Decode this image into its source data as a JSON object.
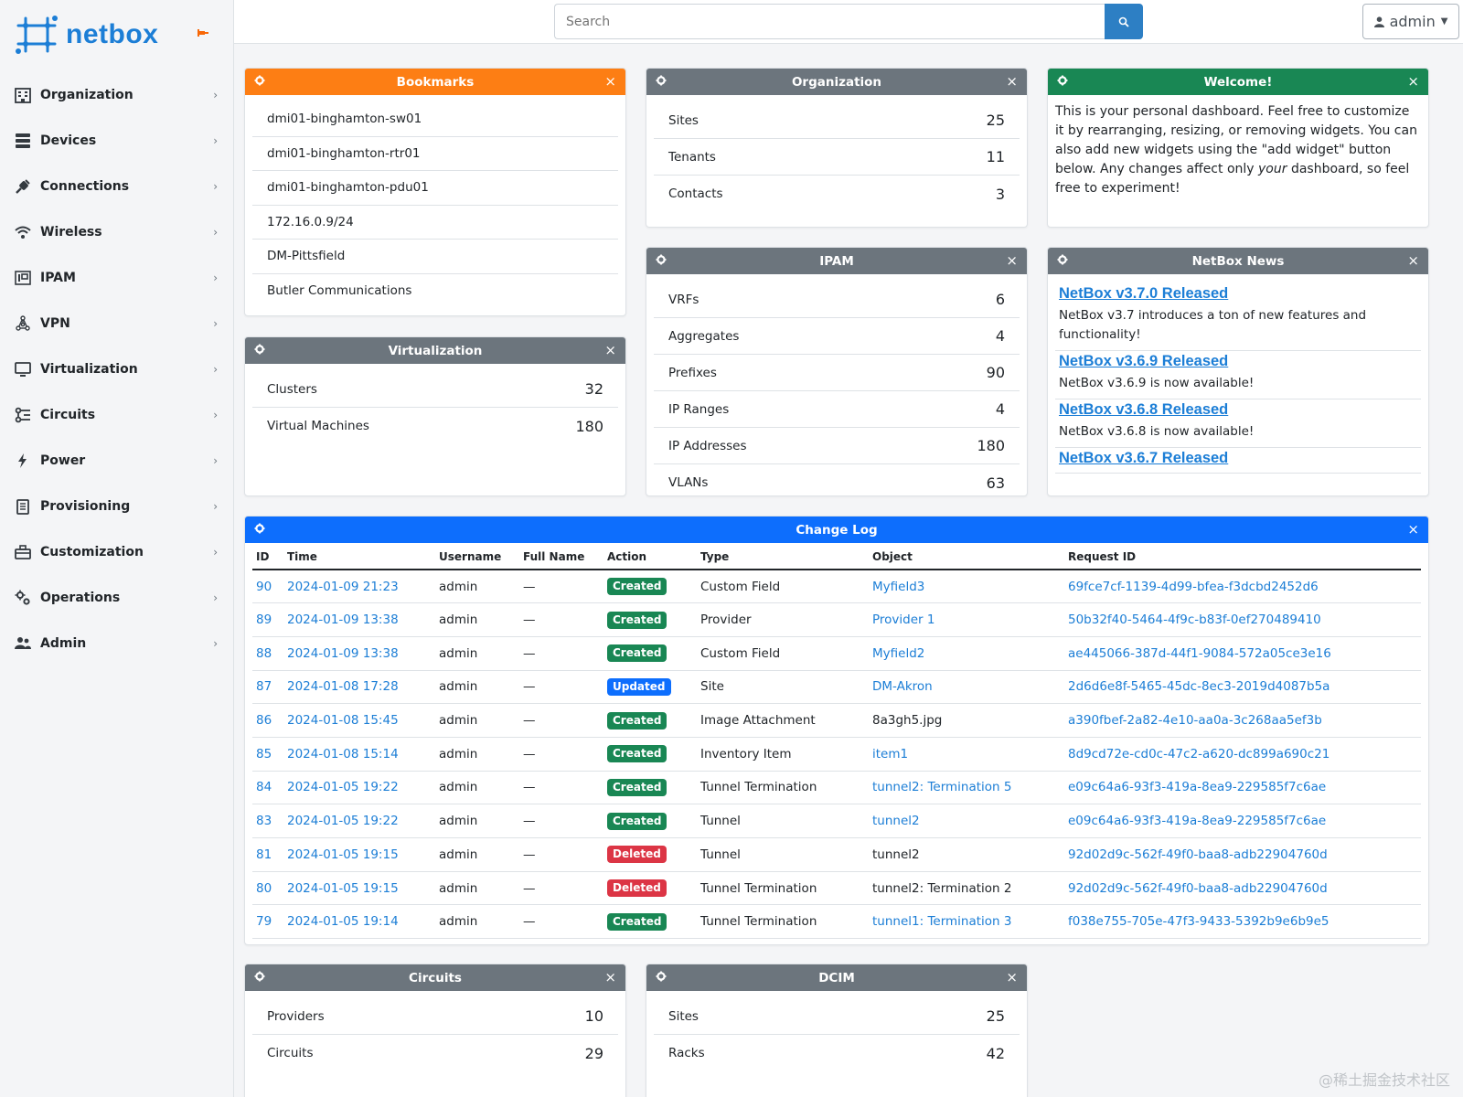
{
  "brand": {
    "name": "netbox"
  },
  "sidebar": {
    "items": [
      {
        "label": "Organization",
        "icon": "building-icon"
      },
      {
        "label": "Devices",
        "icon": "server-icon"
      },
      {
        "label": "Connections",
        "icon": "plug-icon"
      },
      {
        "label": "Wireless",
        "icon": "wifi-icon"
      },
      {
        "label": "IPAM",
        "icon": "ip-icon"
      },
      {
        "label": "VPN",
        "icon": "graph-icon"
      },
      {
        "label": "Virtualization",
        "icon": "monitor-icon"
      },
      {
        "label": "Circuits",
        "icon": "circuit-icon"
      },
      {
        "label": "Power",
        "icon": "lightning-icon"
      },
      {
        "label": "Provisioning",
        "icon": "file-icon"
      },
      {
        "label": "Customization",
        "icon": "toolbox-icon"
      },
      {
        "label": "Operations",
        "icon": "cogs-icon"
      },
      {
        "label": "Admin",
        "icon": "users-icon"
      }
    ],
    "chevron": "›"
  },
  "header": {
    "search_placeholder": "Search",
    "user_label": "admin"
  },
  "colors": {
    "orange": "#fd7e14",
    "gray": "#6c757d",
    "green": "#198754",
    "blue": "#0d6efd",
    "link": "#1c7ed6",
    "danger": "#dc3545"
  },
  "widgets": {
    "close_glyph": "×",
    "bookmarks": {
      "title": "Bookmarks",
      "items": [
        "dmi01-binghamton-sw01",
        "dmi01-binghamton-rtr01",
        "dmi01-binghamton-pdu01",
        "172.16.0.9/24",
        "DM-Pittsfield",
        "Butler Communications"
      ]
    },
    "organization": {
      "title": "Organization",
      "rows": [
        {
          "label": "Sites",
          "value": "25"
        },
        {
          "label": "Tenants",
          "value": "11"
        },
        {
          "label": "Contacts",
          "value": "3"
        }
      ]
    },
    "welcome": {
      "title": "Welcome!",
      "text_before": "This is your personal dashboard. Feel free to customize it by rearranging, resizing, or removing widgets. You can also add new widgets using the \"add widget\" button below. Any changes affect only ",
      "text_em": "your",
      "text_after": " dashboard, so feel free to experiment!"
    },
    "virtualization": {
      "title": "Virtualization",
      "rows": [
        {
          "label": "Clusters",
          "value": "32"
        },
        {
          "label": "Virtual Machines",
          "value": "180"
        }
      ]
    },
    "ipam": {
      "title": "IPAM",
      "rows": [
        {
          "label": "VRFs",
          "value": "6"
        },
        {
          "label": "Aggregates",
          "value": "4"
        },
        {
          "label": "Prefixes",
          "value": "90"
        },
        {
          "label": "IP Ranges",
          "value": "4"
        },
        {
          "label": "IP Addresses",
          "value": "180"
        },
        {
          "label": "VLANs",
          "value": "63"
        }
      ]
    },
    "news": {
      "title": "NetBox News",
      "items": [
        {
          "title": "NetBox v3.7.0 Released",
          "desc": "NetBox v3.7 introduces a ton of new features and functionality!"
        },
        {
          "title": "NetBox v3.6.9 Released",
          "desc": "NetBox v3.6.9 is now available!"
        },
        {
          "title": "NetBox v3.6.8 Released",
          "desc": "NetBox v3.6.8 is now available!"
        },
        {
          "title": "NetBox v3.6.7 Released",
          "desc": ""
        }
      ]
    },
    "changelog": {
      "title": "Change Log",
      "columns": [
        "ID",
        "Time",
        "Username",
        "Full Name",
        "Action",
        "Type",
        "Object",
        "Request ID"
      ],
      "rows": [
        {
          "id": "90",
          "time": "2024-01-09 21:23",
          "user": "admin",
          "full": "—",
          "action": "Created",
          "type": "Custom Field",
          "object": "Myfield3",
          "object_link": true,
          "req": "69fce7cf-1139-4d99-bfea-f3dcbd2452d6"
        },
        {
          "id": "89",
          "time": "2024-01-09 13:38",
          "user": "admin",
          "full": "—",
          "action": "Created",
          "type": "Provider",
          "object": "Provider 1",
          "object_link": true,
          "req": "50b32f40-5464-4f9c-b83f-0ef270489410"
        },
        {
          "id": "88",
          "time": "2024-01-09 13:38",
          "user": "admin",
          "full": "—",
          "action": "Created",
          "type": "Custom Field",
          "object": "Myfield2",
          "object_link": true,
          "req": "ae445066-387d-44f1-9084-572a05ce3e16"
        },
        {
          "id": "87",
          "time": "2024-01-08 17:28",
          "user": "admin",
          "full": "—",
          "action": "Updated",
          "type": "Site",
          "object": "DM-Akron",
          "object_link": true,
          "req": "2d6d6e8f-5465-45dc-8ec3-2019d4087b5a"
        },
        {
          "id": "86",
          "time": "2024-01-08 15:45",
          "user": "admin",
          "full": "—",
          "action": "Created",
          "type": "Image Attachment",
          "object": "8a3gh5.jpg",
          "object_link": false,
          "req": "a390fbef-2a82-4e10-aa0a-3c268aa5ef3b"
        },
        {
          "id": "85",
          "time": "2024-01-08 15:14",
          "user": "admin",
          "full": "—",
          "action": "Created",
          "type": "Inventory Item",
          "object": "item1",
          "object_link": true,
          "req": "8d9cd72e-cd0c-47c2-a620-dc899a690c21"
        },
        {
          "id": "84",
          "time": "2024-01-05 19:22",
          "user": "admin",
          "full": "—",
          "action": "Created",
          "type": "Tunnel Termination",
          "object": "tunnel2: Termination 5",
          "object_link": true,
          "req": "e09c64a6-93f3-419a-8ea9-229585f7c6ae"
        },
        {
          "id": "83",
          "time": "2024-01-05 19:22",
          "user": "admin",
          "full": "—",
          "action": "Created",
          "type": "Tunnel",
          "object": "tunnel2",
          "object_link": true,
          "req": "e09c64a6-93f3-419a-8ea9-229585f7c6ae"
        },
        {
          "id": "81",
          "time": "2024-01-05 19:15",
          "user": "admin",
          "full": "—",
          "action": "Deleted",
          "type": "Tunnel",
          "object": "tunnel2",
          "object_link": false,
          "req": "92d02d9c-562f-49f0-baa8-adb22904760d"
        },
        {
          "id": "80",
          "time": "2024-01-05 19:15",
          "user": "admin",
          "full": "—",
          "action": "Deleted",
          "type": "Tunnel Termination",
          "object": "tunnel2: Termination 2",
          "object_link": false,
          "req": "92d02d9c-562f-49f0-baa8-adb22904760d"
        },
        {
          "id": "79",
          "time": "2024-01-05 19:14",
          "user": "admin",
          "full": "—",
          "action": "Created",
          "type": "Tunnel Termination",
          "object": "tunnel1: Termination 3",
          "object_link": true,
          "req": "f038e755-705e-47f3-9433-5392b9e6b9e5"
        }
      ]
    },
    "circuits": {
      "title": "Circuits",
      "rows": [
        {
          "label": "Providers",
          "value": "10"
        },
        {
          "label": "Circuits",
          "value": "29"
        }
      ]
    },
    "dcim": {
      "title": "DCIM",
      "rows": [
        {
          "label": "Sites",
          "value": "25"
        },
        {
          "label": "Racks",
          "value": "42"
        }
      ]
    }
  },
  "watermark": "@稀土掘金技术社区"
}
